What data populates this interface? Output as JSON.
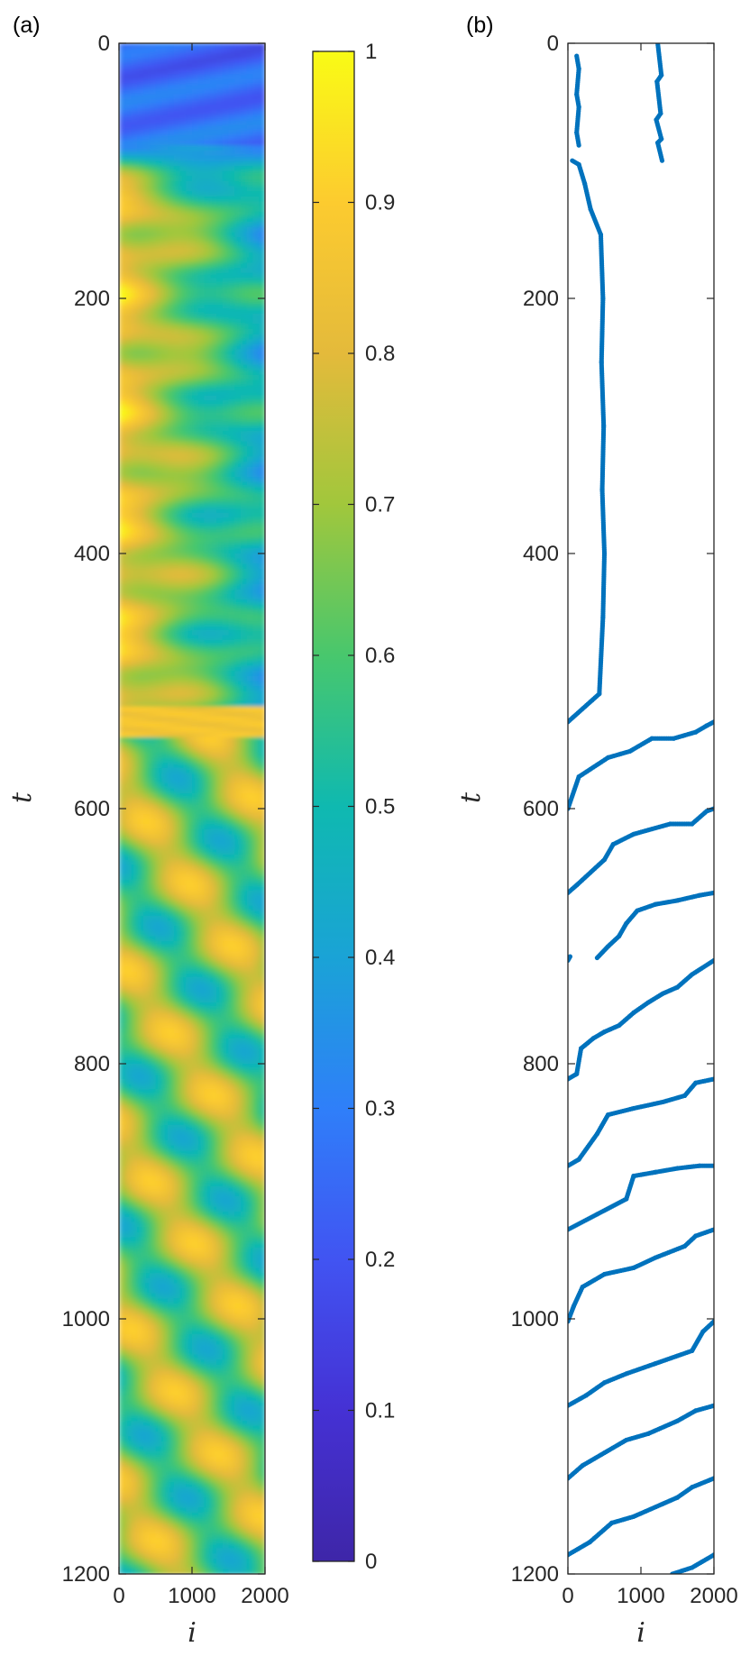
{
  "panels": {
    "a": "(a)",
    "b": "(b)"
  },
  "colors": {
    "dots": "#0072BD",
    "axis": "#262626",
    "colormap": [
      "#3E26A8",
      "#4154F2",
      "#2F7FF9",
      "#1AA3D6",
      "#0FB9B0",
      "#48C76D",
      "#A1C73C",
      "#E4BA3B",
      "#FCCB2F",
      "#F9FB15"
    ]
  },
  "chart_data": [
    {
      "type": "heatmap",
      "panel": "(a)",
      "xlabel": "i",
      "ylabel": "t",
      "xlim": [
        0,
        2000
      ],
      "ylim": [
        0,
        1200
      ],
      "y_reversed": true,
      "xticks": [
        "0",
        "1000",
        "2000"
      ],
      "yticks": [
        "0",
        "200",
        "400",
        "600",
        "800",
        "1000",
        "1200"
      ],
      "colormap": "parula",
      "colorbar": {
        "range": [
          0,
          1
        ],
        "ticks": [
          "0",
          "0.1",
          "0.2",
          "0.3",
          "0.4",
          "0.5",
          "0.6",
          "0.7",
          "0.8",
          "0.9",
          "1"
        ]
      },
      "regimes": [
        {
          "t_range": [
            0,
            80
          ],
          "typical_value": 0.15
        },
        {
          "t_range": [
            80,
            520
          ],
          "left_value": 0.85,
          "right_value": 0.4,
          "pattern": "stationary spots"
        },
        {
          "t_range": [
            520,
            545
          ],
          "typical_value": 0.85
        },
        {
          "t_range": [
            545,
            1200
          ],
          "min_value": 0.35,
          "max_value": 0.9,
          "pattern": "drifting stripes"
        }
      ]
    },
    {
      "type": "scatter",
      "panel": "(b)",
      "xlabel": "i",
      "ylabel": "t",
      "xlim": [
        0,
        2000
      ],
      "ylim": [
        0,
        1200
      ],
      "y_reversed": true,
      "xticks": [
        "0",
        "1000",
        "2000"
      ],
      "yticks": [
        "0",
        "200",
        "400",
        "600",
        "800",
        "1000",
        "1200"
      ],
      "series": [
        {
          "segments": [
            {
              "x": [
                120,
                150,
                120,
                150,
                120,
                150
              ],
              "y": [
                10,
                20,
                40,
                50,
                70,
                80
              ]
            },
            {
              "x": [
                1230,
                1280,
                1220,
                1270,
                1210,
                1280,
                1230,
                1290
              ],
              "y": [
                0,
                25,
                30,
                55,
                60,
                75,
                78,
                92
              ]
            },
            {
              "x": [
                60,
                150,
                230,
                310,
                450,
                480,
                460,
                490,
                470,
                500,
                480,
                430,
                0
              ],
              "y": [
                92,
                95,
                110,
                130,
                150,
                200,
                250,
                300,
                350,
                400,
                450,
                510,
                532
              ]
            },
            {
              "x": [
                0,
                150,
                550,
                850,
                1150,
                1450,
                1750,
                1900,
                2000
              ],
              "y": [
                600,
                575,
                560,
                555,
                545,
                545,
                540,
                535,
                532
              ]
            },
            {
              "x": [
                0,
                120,
                500,
                620,
                900,
                1400,
                1700,
                1900,
                2000
              ],
              "y": [
                666,
                660,
                640,
                628,
                620,
                612,
                612,
                602,
                600
              ]
            },
            {
              "x": [
                0,
                30
              ],
              "y": [
                719,
                716
              ]
            },
            {
              "x": [
                400,
                550,
                700,
                800,
                950,
                1200,
                1500,
                1800,
                2000
              ],
              "y": [
                717,
                708,
                700,
                690,
                680,
                675,
                672,
                668,
                666
              ]
            },
            {
              "x": [
                0,
                120,
                180,
                350,
                500,
                700,
                900,
                1100,
                1300,
                1500,
                1700,
                2000
              ],
              "y": [
                812,
                808,
                788,
                780,
                775,
                770,
                760,
                752,
                745,
                740,
                730,
                719
              ]
            },
            {
              "x": [
                0,
                150,
                400,
                550,
                900,
                1300,
                1600,
                1750,
                2000
              ],
              "y": [
                880,
                875,
                855,
                840,
                835,
                830,
                825,
                815,
                812
              ]
            },
            {
              "x": [
                0,
                400,
                800,
                900,
                1200,
                1500,
                1800,
                2000
              ],
              "y": [
                930,
                918,
                906,
                888,
                885,
                882,
                880,
                880
              ]
            },
            {
              "x": [
                0,
                80,
                200,
                500,
                900,
                1200,
                1600,
                1750,
                2000
              ],
              "y": [
                1002,
                990,
                975,
                965,
                960,
                952,
                943,
                935,
                930
              ]
            },
            {
              "x": [
                0,
                250,
                500,
                800,
                1200,
                1700,
                1850,
                2000
              ],
              "y": [
                1068,
                1060,
                1050,
                1043,
                1035,
                1025,
                1010,
                1002
              ]
            },
            {
              "x": [
                0,
                200,
                500,
                800,
                1100,
                1500,
                1750,
                2000
              ],
              "y": [
                1125,
                1115,
                1105,
                1095,
                1090,
                1080,
                1072,
                1068
              ]
            },
            {
              "x": [
                0,
                300,
                600,
                900,
                1300,
                1500,
                1700,
                2000
              ],
              "y": [
                1185,
                1175,
                1160,
                1155,
                1145,
                1140,
                1132,
                1125
              ]
            },
            {
              "x": [
                1430,
                1700,
                2000
              ],
              "y": [
                1200,
                1195,
                1185
              ]
            }
          ]
        }
      ]
    }
  ]
}
